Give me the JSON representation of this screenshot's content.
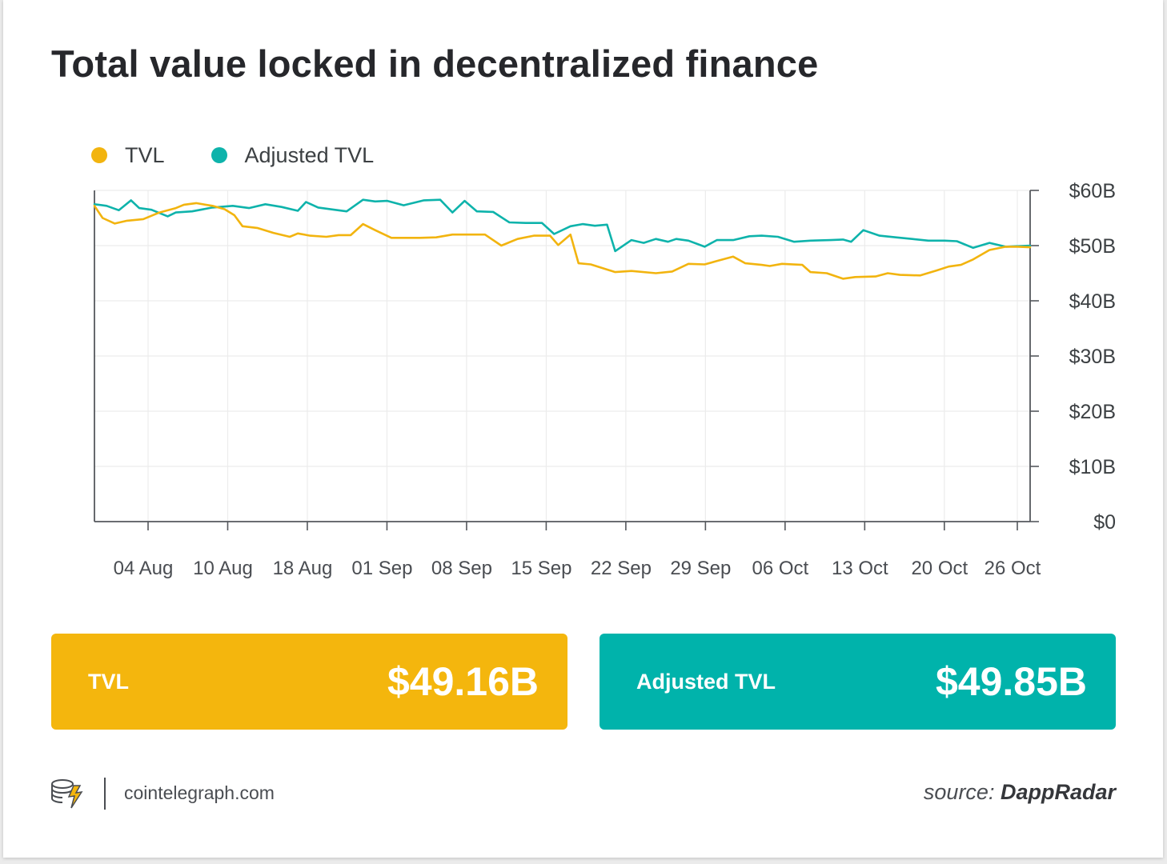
{
  "title": "Total value locked in decentralized finance",
  "legend": [
    {
      "label": "TVL",
      "color": "#f2b40f"
    },
    {
      "label": "Adjusted TVL",
      "color": "#0eb3ab"
    }
  ],
  "chart_data": {
    "type": "line",
    "title": "Total value locked in decentralized finance",
    "xlabel": "",
    "ylabel": "",
    "ylim": [
      0,
      60
    ],
    "y_unit": "billion USD",
    "y_axis_side": "right",
    "y_ticks": [
      "$0",
      "$10B",
      "$20B",
      "$30B",
      "$40B",
      "$50B",
      "$60B"
    ],
    "x_ticks": [
      "04 Aug",
      "10 Aug",
      "18 Aug",
      "01 Sep",
      "08 Sep",
      "15 Sep",
      "22 Sep",
      "29 Sep",
      "06 Oct",
      "13 Oct",
      "20 Oct",
      "26 Oct"
    ],
    "grid": true,
    "legend_position": "top-left",
    "series": [
      {
        "name": "TVL",
        "color": "#f2b40f",
        "points": [
          [
            0,
            57.2
          ],
          [
            0.1,
            55
          ],
          [
            0.25,
            54
          ],
          [
            0.4,
            54.5
          ],
          [
            0.6,
            54.8
          ],
          [
            0.8,
            56
          ],
          [
            1,
            56.8
          ],
          [
            1.1,
            57.4
          ],
          [
            1.25,
            57.7
          ],
          [
            1.45,
            57.2
          ],
          [
            1.6,
            56.6
          ],
          [
            1.72,
            55.5
          ],
          [
            1.82,
            53.5
          ],
          [
            2,
            53.2
          ],
          [
            2.2,
            52.3
          ],
          [
            2.4,
            51.6
          ],
          [
            2.5,
            52.2
          ],
          [
            2.65,
            51.8
          ],
          [
            2.85,
            51.6
          ],
          [
            3,
            51.9
          ],
          [
            3.15,
            51.9
          ],
          [
            3.3,
            53.9
          ],
          [
            3.45,
            52.8
          ],
          [
            3.65,
            51.4
          ],
          [
            4,
            51.4
          ],
          [
            4.2,
            51.5
          ],
          [
            4.4,
            52
          ],
          [
            4.8,
            52
          ],
          [
            5.0,
            50
          ],
          [
            5.2,
            51.2
          ],
          [
            5.4,
            51.8
          ],
          [
            5.6,
            51.8
          ],
          [
            5.7,
            50.1
          ],
          [
            5.85,
            52
          ],
          [
            5.95,
            46.8
          ],
          [
            6.1,
            46.6
          ],
          [
            6.4,
            45.2
          ],
          [
            6.6,
            45.4
          ],
          [
            6.9,
            45
          ],
          [
            7.1,
            45.3
          ],
          [
            7.3,
            46.7
          ],
          [
            7.5,
            46.6
          ],
          [
            7.65,
            47.2
          ],
          [
            7.85,
            48
          ],
          [
            8,
            46.8
          ],
          [
            8.2,
            46.5
          ],
          [
            8.3,
            46.3
          ],
          [
            8.45,
            46.7
          ],
          [
            8.7,
            46.5
          ],
          [
            8.8,
            45.2
          ],
          [
            9,
            45
          ],
          [
            9.2,
            44
          ],
          [
            9.35,
            44.3
          ],
          [
            9.6,
            44.4
          ],
          [
            9.75,
            45
          ],
          [
            9.9,
            44.7
          ],
          [
            10.15,
            44.6
          ],
          [
            10.35,
            45.5
          ],
          [
            10.5,
            46.2
          ],
          [
            10.65,
            46.5
          ],
          [
            10.8,
            47.5
          ],
          [
            11,
            49.2
          ],
          [
            11.2,
            49.8
          ],
          [
            11.35,
            49.8
          ],
          [
            11.5,
            49.7
          ]
        ]
      },
      {
        "name": "Adjusted TVL",
        "color": "#0eb3ab",
        "points": [
          [
            0,
            57.5
          ],
          [
            0.15,
            57.2
          ],
          [
            0.3,
            56.4
          ],
          [
            0.45,
            58.2
          ],
          [
            0.55,
            56.8
          ],
          [
            0.7,
            56.5
          ],
          [
            0.9,
            55.3
          ],
          [
            1,
            56
          ],
          [
            1.2,
            56.2
          ],
          [
            1.45,
            56.9
          ],
          [
            1.7,
            57.2
          ],
          [
            1.9,
            56.8
          ],
          [
            2.1,
            57.5
          ],
          [
            2.3,
            57
          ],
          [
            2.5,
            56.3
          ],
          [
            2.6,
            57.9
          ],
          [
            2.75,
            56.9
          ],
          [
            2.95,
            56.5
          ],
          [
            3.1,
            56.2
          ],
          [
            3.3,
            58.3
          ],
          [
            3.45,
            58
          ],
          [
            3.6,
            58.1
          ],
          [
            3.8,
            57.3
          ],
          [
            4.05,
            58.2
          ],
          [
            4.25,
            58.3
          ],
          [
            4.4,
            56
          ],
          [
            4.55,
            58.1
          ],
          [
            4.7,
            56.2
          ],
          [
            4.9,
            56.1
          ],
          [
            5.1,
            54.2
          ],
          [
            5.3,
            54.1
          ],
          [
            5.5,
            54.1
          ],
          [
            5.65,
            52.1
          ],
          [
            5.85,
            53.5
          ],
          [
            6,
            53.9
          ],
          [
            6.15,
            53.6
          ],
          [
            6.3,
            53.8
          ],
          [
            6.4,
            49
          ],
          [
            6.6,
            51
          ],
          [
            6.75,
            50.5
          ],
          [
            6.9,
            51.2
          ],
          [
            7.05,
            50.7
          ],
          [
            7.15,
            51.2
          ],
          [
            7.3,
            50.9
          ],
          [
            7.5,
            49.8
          ],
          [
            7.65,
            51
          ],
          [
            7.85,
            51
          ],
          [
            8.05,
            51.7
          ],
          [
            8.2,
            51.8
          ],
          [
            8.4,
            51.6
          ],
          [
            8.6,
            50.7
          ],
          [
            8.8,
            50.9
          ],
          [
            9.05,
            51
          ],
          [
            9.2,
            51.1
          ],
          [
            9.3,
            50.7
          ],
          [
            9.45,
            52.8
          ],
          [
            9.65,
            51.8
          ],
          [
            9.85,
            51.5
          ],
          [
            10.05,
            51.2
          ],
          [
            10.25,
            50.9
          ],
          [
            10.45,
            50.9
          ],
          [
            10.6,
            50.8
          ],
          [
            10.8,
            49.6
          ],
          [
            11,
            50.5
          ],
          [
            11.2,
            49.8
          ],
          [
            11.5,
            50
          ]
        ]
      }
    ],
    "x_domain": [
      0,
      11.5
    ],
    "x_tick_positions": [
      0.4,
      1.0,
      1.6,
      2.2,
      2.8,
      3.4,
      4.0,
      4.6,
      5.2,
      5.8,
      6.4,
      6.95
    ]
  },
  "stats": [
    {
      "label": "TVL",
      "value": "$49.16B",
      "color": "#f4b60d"
    },
    {
      "label": "Adjusted TVL",
      "value": "$49.85B",
      "color": "#00b3ab"
    }
  ],
  "footer": {
    "site": "cointelegraph.com",
    "source_prefix": "source:",
    "source_name": "DappRadar",
    "logo_icon": "cointelegraph-coin-icon"
  }
}
